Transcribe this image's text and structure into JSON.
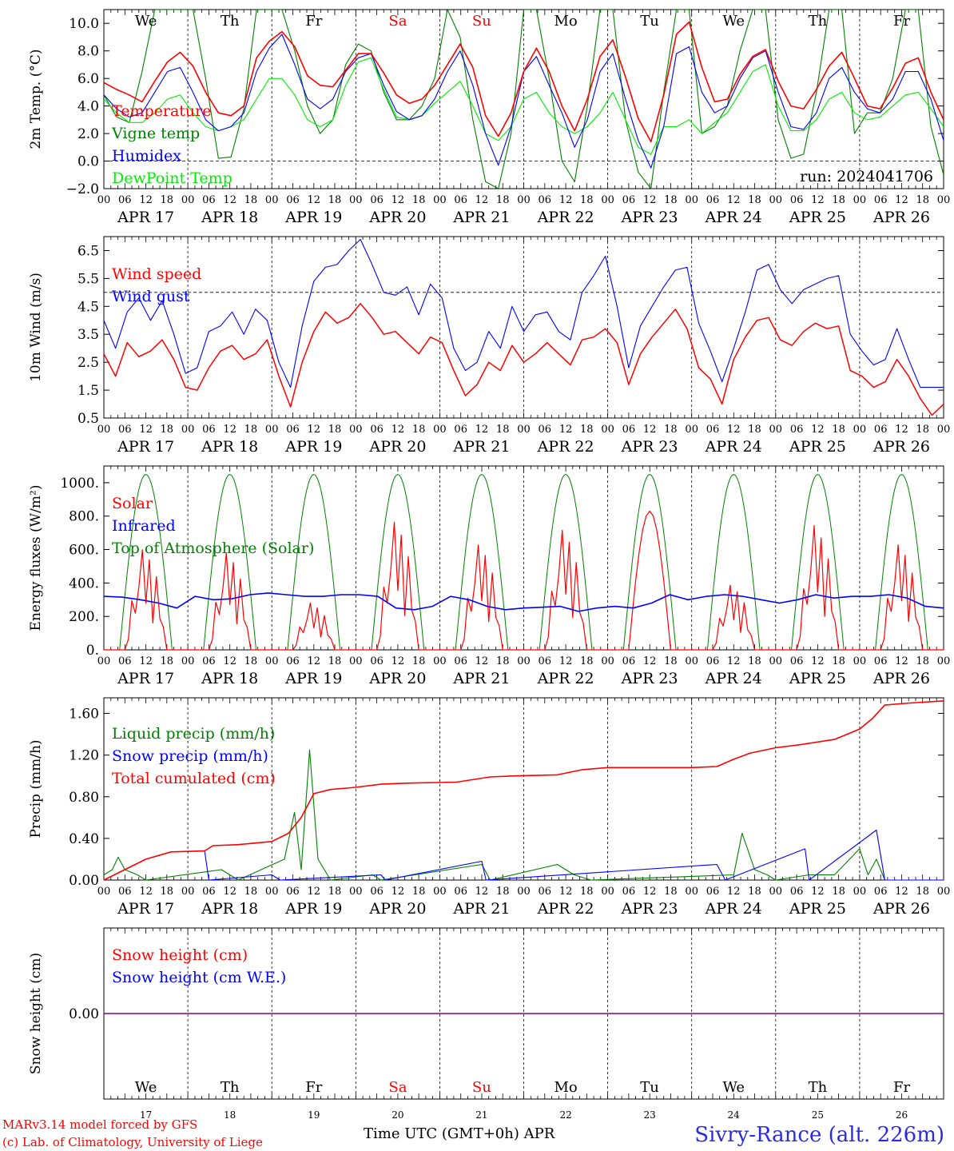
{
  "days": [
    "APR 17",
    "APR 18",
    "APR 19",
    "APR 20",
    "APR 21",
    "APR 22",
    "APR 23",
    "APR 24",
    "APR 25",
    "APR 26"
  ],
  "weekdays": [
    "We",
    "Th",
    "Fr",
    "Sa",
    "Su",
    "Mo",
    "Tu",
    "We",
    "Th",
    "Fr"
  ],
  "weekend_flags": [
    false,
    false,
    false,
    true,
    true,
    false,
    false,
    false,
    false,
    false
  ],
  "day_numbers": [
    "17",
    "18",
    "19",
    "20",
    "21",
    "22",
    "23",
    "24",
    "25",
    "26"
  ],
  "hour_ticks": [
    "00",
    "06",
    "12",
    "18"
  ],
  "hour_end": "00",
  "colors": {
    "red": "#ff0000",
    "green": "#008000",
    "blue": "#0000ff",
    "lightgreen": "#00ee00",
    "purple": "#800080",
    "footer_blue": "#2a2ae0"
  },
  "footer": {
    "model": "MARv3.14 model forced by GFS",
    "copyright": "(c) Lab. of Climatology, University of Liege",
    "xlabel": "Time UTC (GMT+0h) APR",
    "station": "Sivry-Rance (alt. 226m)"
  },
  "chart_data": [
    {
      "type": "line",
      "ylabel": "2m Temp. (°C)",
      "ylim": [
        -2,
        11
      ],
      "yticks": [
        "10.0",
        "8.0",
        "6.0",
        "4.0",
        "2.0",
        "0.0",
        "−2.0"
      ],
      "ytick_values": [
        10,
        8,
        6,
        4,
        2,
        0,
        -2
      ],
      "ref_line": 0,
      "run_label": "run: 2024041706",
      "series": [
        {
          "name": "Temperature",
          "color": "#ff0000",
          "values": [
            5.7,
            5.2,
            4.8,
            4.3,
            5.8,
            7.2,
            7.9,
            6.9,
            5.0,
            3.5,
            3.3,
            4.0,
            7.5,
            8.7,
            9.4,
            8.3,
            6.2,
            5.5,
            5.4,
            6.6,
            7.8,
            7.8,
            6.4,
            4.8,
            4.2,
            4.5,
            5.5,
            7.0,
            8.5,
            6.8,
            3.3,
            1.8,
            3.5,
            6.5,
            8.2,
            6.5,
            4.0,
            2.2,
            4.5,
            7.6,
            8.8,
            6.1,
            3.1,
            1.4,
            4.8,
            9.2,
            10.1,
            6.8,
            4.3,
            4.5,
            6.3,
            7.6,
            8.1,
            5.8,
            4.0,
            3.8,
            5.2,
            6.9,
            7.9,
            6.0,
            4.0,
            3.8,
            5.3,
            7.1,
            7.5,
            5.0,
            3.0
          ]
        },
        {
          "name": "Vigne temp",
          "color": "#008000",
          "values": [
            4.8,
            3.2,
            2.8,
            6.5,
            11.0,
            11.0,
            11.0,
            11.0,
            6.0,
            0.2,
            0.3,
            3.8,
            11.0,
            11.0,
            11.0,
            8.0,
            4.0,
            2.0,
            3.0,
            7.0,
            8.5,
            8.0,
            5.0,
            3.0,
            3.0,
            4.0,
            6.0,
            11.0,
            9.0,
            3.0,
            -1.5,
            -2.0,
            2.0,
            11.0,
            11.0,
            6.0,
            0.0,
            -1.5,
            4.0,
            11.0,
            11.0,
            3.0,
            -0.8,
            -2.0,
            5.0,
            11.0,
            11.0,
            2.0,
            2.5,
            4.0,
            8.0,
            11.0,
            11.0,
            3.0,
            0.2,
            0.5,
            5.0,
            11.0,
            11.0,
            2.0,
            3.5,
            3.5,
            6.0,
            11.0,
            11.0,
            2.5,
            -1.0
          ]
        },
        {
          "name": "Humidex",
          "color": "#0000ff",
          "values": [
            4.8,
            3.8,
            3.2,
            3.5,
            5.0,
            6.5,
            6.8,
            5.0,
            3.0,
            2.2,
            2.5,
            3.5,
            6.5,
            8.2,
            9.2,
            7.0,
            4.5,
            3.8,
            4.5,
            6.5,
            7.5,
            7.8,
            5.5,
            3.6,
            3.0,
            3.3,
            4.5,
            6.5,
            8.0,
            5.5,
            2.0,
            -0.3,
            2.5,
            6.5,
            7.6,
            5.5,
            3.5,
            1.0,
            3.0,
            6.5,
            7.8,
            4.5,
            1.5,
            -0.5,
            2.5,
            7.8,
            8.3,
            5.0,
            3.5,
            4.0,
            6.0,
            7.5,
            8.0,
            5.0,
            2.5,
            2.3,
            3.5,
            6.0,
            6.8,
            5.0,
            3.8,
            3.5,
            4.5,
            6.5,
            6.5,
            4.5,
            1.5
          ]
        },
        {
          "name": "DewPoint Temp",
          "color": "#00ee00",
          "values": [
            4.5,
            3.5,
            2.8,
            2.8,
            3.5,
            4.5,
            4.8,
            3.5,
            2.5,
            2.2,
            2.5,
            3.0,
            4.5,
            6.0,
            6.0,
            4.8,
            3.0,
            2.5,
            3.0,
            5.5,
            7.2,
            7.5,
            5.2,
            3.2,
            3.0,
            3.3,
            4.2,
            5.0,
            5.8,
            4.0,
            2.0,
            1.5,
            2.5,
            4.5,
            5.0,
            3.5,
            2.5,
            2.0,
            2.5,
            3.5,
            5.0,
            3.0,
            1.0,
            0.5,
            2.5,
            2.5,
            3.0,
            2.0,
            2.8,
            3.5,
            5.0,
            6.5,
            7.0,
            4.0,
            2.2,
            2.2,
            3.0,
            4.5,
            5.0,
            3.5,
            3.0,
            3.2,
            4.0,
            4.8,
            5.0,
            3.8,
            2.5
          ]
        }
      ]
    },
    {
      "type": "line",
      "ylabel": "10m Wind (m/s)",
      "ylim": [
        0.5,
        7.0
      ],
      "yticks": [
        "6.5",
        "5.5",
        "4.5",
        "3.5",
        "2.5",
        "1.5",
        "0.5"
      ],
      "ytick_values": [
        6.5,
        5.5,
        4.5,
        3.5,
        2.5,
        1.5,
        0.5
      ],
      "ref_line": 5.0,
      "series": [
        {
          "name": "Wind speed",
          "color": "#ff0000",
          "values": [
            2.8,
            2.0,
            3.2,
            2.7,
            2.9,
            3.3,
            2.6,
            1.6,
            1.5,
            2.3,
            2.9,
            3.1,
            2.6,
            2.8,
            3.3,
            2.0,
            0.9,
            2.5,
            3.6,
            4.3,
            3.9,
            4.1,
            4.6,
            4.1,
            3.5,
            3.6,
            3.2,
            2.8,
            3.4,
            3.2,
            2.2,
            1.3,
            1.7,
            2.5,
            2.2,
            3.1,
            2.5,
            2.8,
            3.2,
            2.8,
            2.4,
            3.3,
            3.4,
            3.7,
            3.2,
            1.7,
            2.8,
            3.4,
            3.9,
            4.4,
            3.7,
            2.3,
            1.9,
            1.0,
            2.6,
            3.4,
            4.0,
            4.1,
            3.3,
            3.1,
            3.6,
            3.9,
            3.7,
            3.8,
            2.2,
            2.0,
            1.6,
            1.8,
            2.6,
            2.0,
            1.2,
            0.6,
            1.0
          ]
        },
        {
          "name": "Wind gust",
          "color": "#0000ff",
          "values": [
            4.0,
            3.0,
            4.3,
            4.8,
            4.0,
            4.7,
            3.5,
            2.1,
            2.3,
            3.6,
            3.8,
            4.3,
            3.5,
            4.4,
            4.0,
            2.5,
            1.6,
            3.8,
            5.4,
            5.9,
            6.0,
            6.5,
            6.9,
            6.0,
            5.0,
            4.9,
            5.2,
            4.2,
            5.3,
            4.8,
            3.0,
            2.2,
            2.5,
            3.6,
            3.0,
            4.5,
            3.6,
            4.2,
            4.3,
            3.6,
            3.3,
            5.0,
            5.6,
            6.3,
            4.5,
            2.3,
            3.8,
            4.5,
            5.2,
            5.8,
            5.9,
            3.9,
            2.9,
            1.8,
            3.0,
            4.3,
            5.8,
            6.0,
            5.1,
            4.6,
            5.1,
            5.3,
            5.5,
            5.6,
            3.5,
            2.9,
            2.4,
            2.6,
            3.7,
            2.6,
            1.6,
            1.6,
            1.6
          ]
        }
      ]
    },
    {
      "type": "line",
      "ylabel": "Energy fluxes (W/m²)",
      "ylim": [
        0,
        1100
      ],
      "yticks": [
        "1000.",
        "800.",
        "600.",
        "400.",
        "200.",
        "0."
      ],
      "ytick_values": [
        1000,
        800,
        600,
        400,
        200,
        0
      ],
      "series": [
        {
          "name": "Solar",
          "color": "#ff0000",
          "peaks": [
            620,
            600,
            290,
            790,
            650,
            740,
            830,
            400,
            770,
            650
          ]
        },
        {
          "name": "Infrared",
          "color": "#0000ff",
          "values": [
            320,
            315,
            300,
            280,
            250,
            320,
            300,
            305,
            330,
            340,
            330,
            320,
            320,
            330,
            330,
            320,
            250,
            240,
            260,
            320,
            300,
            260,
            240,
            250,
            255,
            260,
            230,
            250,
            260,
            250,
            280,
            330,
            300,
            320,
            330,
            320,
            300,
            280,
            300,
            330,
            310,
            320,
            320,
            330,
            310,
            260,
            250
          ]
        },
        {
          "name": "Top of Atmosphere (Solar)",
          "color": "#008000",
          "peak": 1050,
          "sunrise_h": 4.5,
          "sunset_h": 19.5
        }
      ]
    },
    {
      "type": "line",
      "ylabel": "Precip (mm/h)",
      "ylim": [
        0,
        1.75
      ],
      "yticks": [
        "1.60",
        "1.20",
        "0.80",
        "0.40",
        "0.00"
      ],
      "ytick_values": [
        1.6,
        1.2,
        0.8,
        0.4,
        0.0
      ],
      "series": [
        {
          "name": "Liquid precip (mm/h)",
          "color": "#008000",
          "points": [
            [
              0,
              0.05
            ],
            [
              0.1,
              0.1
            ],
            [
              0.17,
              0.22
            ],
            [
              0.25,
              0.1
            ],
            [
              0.4,
              0.05
            ],
            [
              0.5,
              0.0
            ],
            [
              1.4,
              0.1
            ],
            [
              1.6,
              0.0
            ],
            [
              2.15,
              0.2
            ],
            [
              2.27,
              0.65
            ],
            [
              2.35,
              0.1
            ],
            [
              2.45,
              1.25
            ],
            [
              2.55,
              0.2
            ],
            [
              2.7,
              0.0
            ],
            [
              3.2,
              0.05
            ],
            [
              3.3,
              0.0
            ],
            [
              4.5,
              0.15
            ],
            [
              4.6,
              0.0
            ],
            [
              5.4,
              0.15
            ],
            [
              5.6,
              0.05
            ],
            [
              5.8,
              0.0
            ],
            [
              7.5,
              0.05
            ],
            [
              7.6,
              0.45
            ],
            [
              7.75,
              0.1
            ],
            [
              7.9,
              0.05
            ],
            [
              8.0,
              0.0
            ],
            [
              8.4,
              0.05
            ],
            [
              8.7,
              0.05
            ],
            [
              9.0,
              0.3
            ],
            [
              9.1,
              0.05
            ],
            [
              9.2,
              0.2
            ],
            [
              9.3,
              0.0
            ]
          ]
        },
        {
          "name": "Snow precip (mm/h)",
          "color": "#0000ff",
          "points": [
            [
              1.2,
              0.28
            ],
            [
              1.25,
              0.0
            ],
            [
              2.0,
              0.05
            ],
            [
              2.1,
              0.0
            ],
            [
              3.3,
              0.05
            ],
            [
              3.35,
              0.0
            ],
            [
              4.5,
              0.18
            ],
            [
              4.55,
              0.0
            ],
            [
              7.3,
              0.15
            ],
            [
              7.4,
              0.0
            ],
            [
              8.35,
              0.3
            ],
            [
              8.4,
              0.0
            ],
            [
              9.2,
              0.48
            ],
            [
              9.3,
              0.0
            ]
          ]
        },
        {
          "name": "Total cumulated (cm)",
          "color": "#ff0000",
          "points": [
            [
              0,
              0
            ],
            [
              0.5,
              0.2
            ],
            [
              0.8,
              0.27
            ],
            [
              1.2,
              0.28
            ],
            [
              1.3,
              0.33
            ],
            [
              1.6,
              0.34
            ],
            [
              2.0,
              0.37
            ],
            [
              2.2,
              0.45
            ],
            [
              2.35,
              0.6
            ],
            [
              2.5,
              0.83
            ],
            [
              2.7,
              0.87
            ],
            [
              3.0,
              0.89
            ],
            [
              3.3,
              0.92
            ],
            [
              3.6,
              0.93
            ],
            [
              4.2,
              0.94
            ],
            [
              4.6,
              0.99
            ],
            [
              4.9,
              1.0
            ],
            [
              5.4,
              1.01
            ],
            [
              5.7,
              1.06
            ],
            [
              6.0,
              1.08
            ],
            [
              7.0,
              1.08
            ],
            [
              7.3,
              1.09
            ],
            [
              7.5,
              1.16
            ],
            [
              7.7,
              1.22
            ],
            [
              8.0,
              1.27
            ],
            [
              8.3,
              1.3
            ],
            [
              8.7,
              1.35
            ],
            [
              9.0,
              1.45
            ],
            [
              9.15,
              1.55
            ],
            [
              9.3,
              1.68
            ],
            [
              9.6,
              1.7
            ],
            [
              10.0,
              1.72
            ]
          ]
        }
      ]
    },
    {
      "type": "line",
      "ylabel": "Snow height (cm)",
      "ylim": [
        -1,
        1
      ],
      "yticks": [
        "0.00"
      ],
      "ytick_values": [
        0
      ],
      "series": [
        {
          "name": "Snow height (cm)",
          "color": "#ff0000",
          "values": [
            0,
            0
          ]
        },
        {
          "name": "Snow height (cm W.E.)",
          "color": "#0000ff",
          "values": [
            0,
            0
          ]
        }
      ]
    }
  ]
}
